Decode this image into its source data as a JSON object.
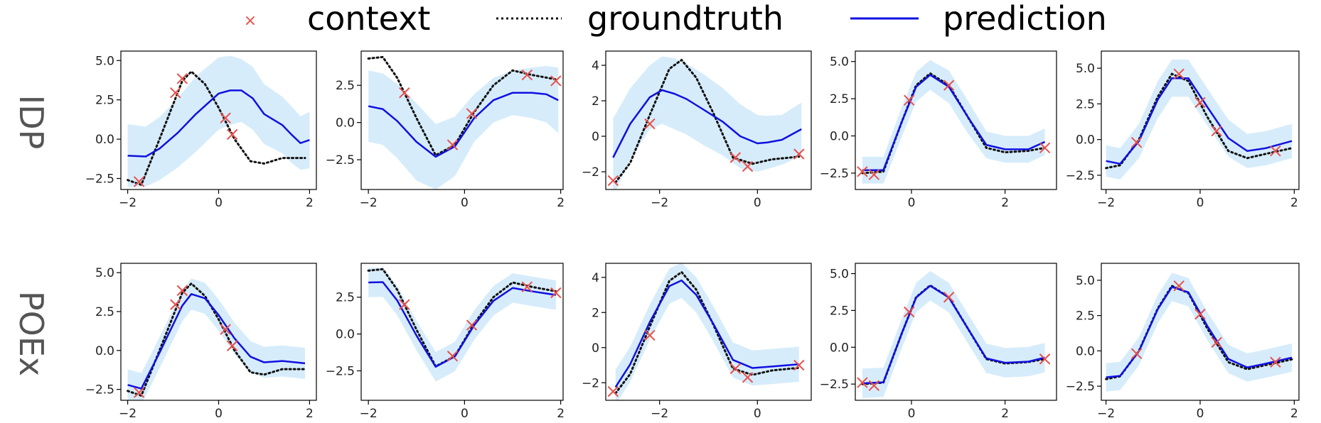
{
  "legend": {
    "context_label": "context",
    "groundtruth_label": "groundtruth",
    "prediction_label": "prediction"
  },
  "row_labels": [
    "IDP",
    "POEx"
  ],
  "colors": {
    "context": "#e8504a",
    "groundtruth": "#111111",
    "prediction": "#1010e0",
    "band": "#d6ecfb"
  },
  "chart_data": [
    {
      "type": "line",
      "row": "IDP",
      "col": 1,
      "xlim": [
        -2.15,
        2.15
      ],
      "ylim": [
        -3.2,
        5.6
      ],
      "xticks": [
        -2,
        0,
        2
      ],
      "xticklabels": [
        "−2",
        "0",
        "2"
      ],
      "yticks": [
        -2.5,
        0,
        2.5,
        5
      ],
      "yticklabels": [
        "−2.5",
        "0.0",
        "2.5",
        "5.0"
      ],
      "context": [
        [
          -1.75,
          -2.7
        ],
        [
          -0.95,
          2.95
        ],
        [
          -0.8,
          3.85
        ],
        [
          0.15,
          1.35
        ],
        [
          0.3,
          0.3
        ]
      ],
      "groundtruth": [
        [
          -2,
          -2.6
        ],
        [
          -1.7,
          -2.9
        ],
        [
          -1.3,
          0
        ],
        [
          -0.8,
          3.7
        ],
        [
          -0.6,
          4.3
        ],
        [
          -0.3,
          3.5
        ],
        [
          0,
          2
        ],
        [
          0.35,
          0
        ],
        [
          0.7,
          -1.4
        ],
        [
          1.0,
          -1.55
        ],
        [
          1.4,
          -1.2
        ],
        [
          1.9,
          -1.2
        ]
      ],
      "prediction": [
        [
          -2,
          -1.05
        ],
        [
          -1.6,
          -1.1
        ],
        [
          -1.3,
          -0.6
        ],
        [
          -0.9,
          0.4
        ],
        [
          -0.5,
          1.6
        ],
        [
          0,
          2.9
        ],
        [
          0.25,
          3.1
        ],
        [
          0.5,
          3.1
        ],
        [
          0.75,
          2.6
        ],
        [
          1.0,
          1.6
        ],
        [
          1.4,
          0.9
        ],
        [
          1.6,
          0.3
        ],
        [
          1.8,
          -0.25
        ],
        [
          2.0,
          -0.05
        ]
      ],
      "band_halfwidth": [
        2.0,
        1.9,
        2.0,
        2.2,
        2.4,
        2.3,
        2.2,
        2.0,
        2.0,
        1.9,
        1.8,
        1.8,
        1.7,
        1.8
      ]
    },
    {
      "type": "line",
      "row": "IDP",
      "col": 2,
      "xlim": [
        -2.15,
        2.05
      ],
      "ylim": [
        -4.5,
        4.8
      ],
      "xticks": [
        -2,
        0,
        2
      ],
      "xticklabels": [
        "−2",
        "0",
        "2"
      ],
      "yticks": [
        -2.5,
        0,
        2.5
      ],
      "yticklabels": [
        "−2.5",
        "0.0",
        "2.5"
      ],
      "context": [
        [
          -1.25,
          2
        ],
        [
          -0.25,
          -1.5
        ],
        [
          0.15,
          0.6
        ],
        [
          1.3,
          3.2
        ],
        [
          1.9,
          2.8
        ]
      ],
      "groundtruth": [
        [
          -2,
          4.3
        ],
        [
          -1.7,
          4.4
        ],
        [
          -1.4,
          3
        ],
        [
          -1.0,
          0.3
        ],
        [
          -0.6,
          -2.2
        ],
        [
          -0.2,
          -1.5
        ],
        [
          0.2,
          0.7
        ],
        [
          0.6,
          2.5
        ],
        [
          1.0,
          3.5
        ],
        [
          1.4,
          3.2
        ],
        [
          1.9,
          2.9
        ]
      ],
      "prediction": [
        [
          -2,
          1.1
        ],
        [
          -1.7,
          0.9
        ],
        [
          -1.4,
          0.1
        ],
        [
          -1.0,
          -1.3
        ],
        [
          -0.6,
          -2.3
        ],
        [
          -0.2,
          -1.6
        ],
        [
          0.2,
          0.3
        ],
        [
          0.6,
          1.5
        ],
        [
          1.0,
          2.0
        ],
        [
          1.4,
          2.0
        ],
        [
          1.7,
          1.9
        ],
        [
          1.95,
          1.5
        ]
      ],
      "band_halfwidth": [
        2.4,
        2.4,
        2.5,
        2.6,
        2.2,
        2.0,
        1.6,
        1.5,
        1.5,
        1.7,
        1.9,
        2.2
      ]
    },
    {
      "type": "line",
      "row": "IDP",
      "col": 3,
      "xlim": [
        -3.1,
        1.1
      ],
      "ylim": [
        -3.0,
        4.8
      ],
      "xticks": [
        -2,
        0
      ],
      "xticklabels": [
        "−2",
        "0"
      ],
      "yticks": [
        -2,
        0,
        2,
        4
      ],
      "yticklabels": [
        "−2",
        "0",
        "2",
        "4"
      ],
      "context": [
        [
          -2.95,
          -2.5
        ],
        [
          -2.2,
          0.7
        ],
        [
          -0.45,
          -1.2
        ],
        [
          -0.2,
          -1.7
        ],
        [
          0.85,
          -1.0
        ]
      ],
      "groundtruth": [
        [
          -2.9,
          -2.6
        ],
        [
          -2.6,
          -1.5
        ],
        [
          -2.2,
          1.2
        ],
        [
          -1.8,
          3.8
        ],
        [
          -1.55,
          4.3
        ],
        [
          -1.25,
          3.3
        ],
        [
          -0.9,
          1.3
        ],
        [
          -0.5,
          -1.2
        ],
        [
          -0.1,
          -1.55
        ],
        [
          0.3,
          -1.3
        ],
        [
          0.85,
          -1.15
        ]
      ],
      "prediction": [
        [
          -2.95,
          -1.2
        ],
        [
          -2.6,
          0.7
        ],
        [
          -2.2,
          2.2
        ],
        [
          -1.95,
          2.6
        ],
        [
          -1.7,
          2.4
        ],
        [
          -1.45,
          2.1
        ],
        [
          -1.1,
          1.5
        ],
        [
          -0.7,
          0.8
        ],
        [
          -0.35,
          0
        ],
        [
          0,
          -0.4
        ],
        [
          0.2,
          -0.35
        ],
        [
          0.5,
          -0.2
        ],
        [
          0.9,
          0.4
        ]
      ],
      "band_halfwidth": [
        2.2,
        2.0,
        1.8,
        1.9,
        2.0,
        2.0,
        2.0,
        1.9,
        1.8,
        1.6,
        1.5,
        1.4,
        1.5
      ]
    },
    {
      "type": "line",
      "row": "POEx",
      "col": 4,
      "xlim": [
        -1.2,
        3.1
      ],
      "ylim": [
        -3.6,
        5.7
      ],
      "xticks": [
        0,
        2
      ],
      "xticklabels": [
        "0",
        "2"
      ],
      "yticks": [
        -2.5,
        0,
        2.5,
        5
      ],
      "yticklabels": [
        "−2.5",
        "0.0",
        "2.5",
        "5.0"
      ],
      "context": [
        [
          -1.05,
          -2.4
        ],
        [
          -0.8,
          -2.6
        ],
        [
          -0.05,
          2.4
        ],
        [
          0.8,
          3.4
        ],
        [
          2.85,
          -0.8
        ]
      ],
      "groundtruth": [
        [
          -1.05,
          -2.5
        ],
        [
          -0.6,
          -2.4
        ],
        [
          -0.2,
          1.0
        ],
        [
          0.1,
          3.4
        ],
        [
          0.4,
          4.2
        ],
        [
          0.8,
          3.4
        ],
        [
          1.2,
          1.3
        ],
        [
          1.6,
          -0.8
        ],
        [
          2.0,
          -1.1
        ],
        [
          2.5,
          -1.0
        ],
        [
          2.85,
          -0.8
        ]
      ],
      "prediction": [
        [
          -1.05,
          -2.3
        ],
        [
          -0.6,
          -2.3
        ],
        [
          -0.2,
          1.0
        ],
        [
          0.1,
          3.3
        ],
        [
          0.4,
          4.1
        ],
        [
          0.8,
          3.3
        ],
        [
          1.2,
          1.3
        ],
        [
          1.6,
          -0.6
        ],
        [
          2.0,
          -0.9
        ],
        [
          2.5,
          -0.9
        ],
        [
          2.85,
          -0.4
        ]
      ],
      "band_halfwidth": [
        0.9,
        0.9,
        1.0,
        1.0,
        1.0,
        1.1,
        1.1,
        0.9,
        0.9,
        0.9,
        0.9
      ]
    },
    {
      "type": "line",
      "row": "POEx",
      "col": 5,
      "xlim": [
        -2.1,
        2.1
      ],
      "ylim": [
        -3.5,
        6.2
      ],
      "xticks": [
        -2,
        0,
        2
      ],
      "xticklabels": [
        "−2",
        "0",
        "2"
      ],
      "yticks": [
        -2.5,
        0,
        2.5,
        5
      ],
      "yticklabels": [
        "−2.5",
        "0.0",
        "2.5",
        "5.0"
      ],
      "context": [
        [
          -1.35,
          -0.2
        ],
        [
          -0.45,
          4.6
        ],
        [
          0.0,
          2.6
        ],
        [
          0.35,
          0.6
        ],
        [
          1.6,
          -0.8
        ]
      ],
      "groundtruth": [
        [
          -2,
          -2
        ],
        [
          -1.7,
          -1.8
        ],
        [
          -1.3,
          0
        ],
        [
          -0.9,
          3
        ],
        [
          -0.6,
          4.6
        ],
        [
          -0.25,
          4.1
        ],
        [
          0.15,
          1.6
        ],
        [
          0.6,
          -0.8
        ],
        [
          1.0,
          -1.3
        ],
        [
          1.4,
          -1.0
        ],
        [
          1.95,
          -0.6
        ]
      ],
      "prediction": [
        [
          -2,
          -1.5
        ],
        [
          -1.7,
          -1.7
        ],
        [
          -1.3,
          -0.1
        ],
        [
          -0.9,
          2.8
        ],
        [
          -0.6,
          4.3
        ],
        [
          -0.25,
          4.3
        ],
        [
          0.15,
          2.3
        ],
        [
          0.6,
          0.1
        ],
        [
          1.0,
          -0.8
        ],
        [
          1.4,
          -0.6
        ],
        [
          1.95,
          -0.1
        ]
      ],
      "band_halfwidth": [
        1.1,
        1.1,
        1.2,
        1.3,
        1.3,
        1.3,
        1.3,
        1.3,
        1.2,
        1.2,
        1.2
      ]
    }
  ]
}
